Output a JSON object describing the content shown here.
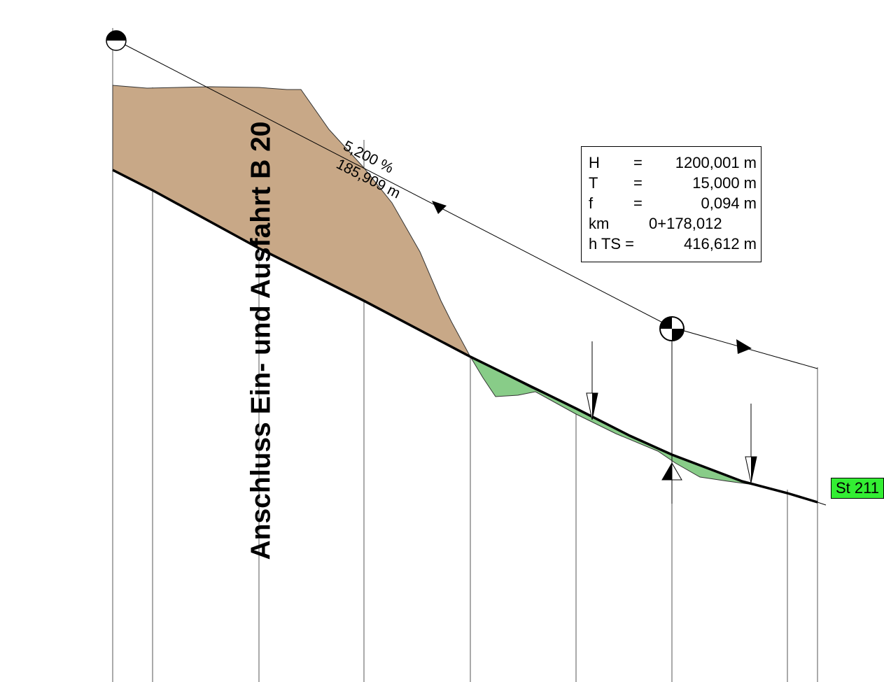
{
  "title": "Anschluss Ein- und Ausfahrt B 20",
  "gradient": {
    "slope": "5,200 %",
    "length": "185,909 m"
  },
  "curve_info": {
    "H": {
      "key": "H",
      "eq": "=",
      "value": "1200,001 m"
    },
    "T": {
      "key": "T",
      "eq": "=",
      "value": "15,000 m"
    },
    "f": {
      "key": "f",
      "eq": "=",
      "value": "0,094 m"
    },
    "km": {
      "key": "km",
      "value": "0+178,012"
    },
    "hTS": {
      "key": "h TS =",
      "value": "416,612 m"
    }
  },
  "station_label": "St 211",
  "colors": {
    "cut_fill": "#c8a887",
    "fill_fill": "#88cc88",
    "station_bg": "#33ee33",
    "line": "#000000"
  }
}
